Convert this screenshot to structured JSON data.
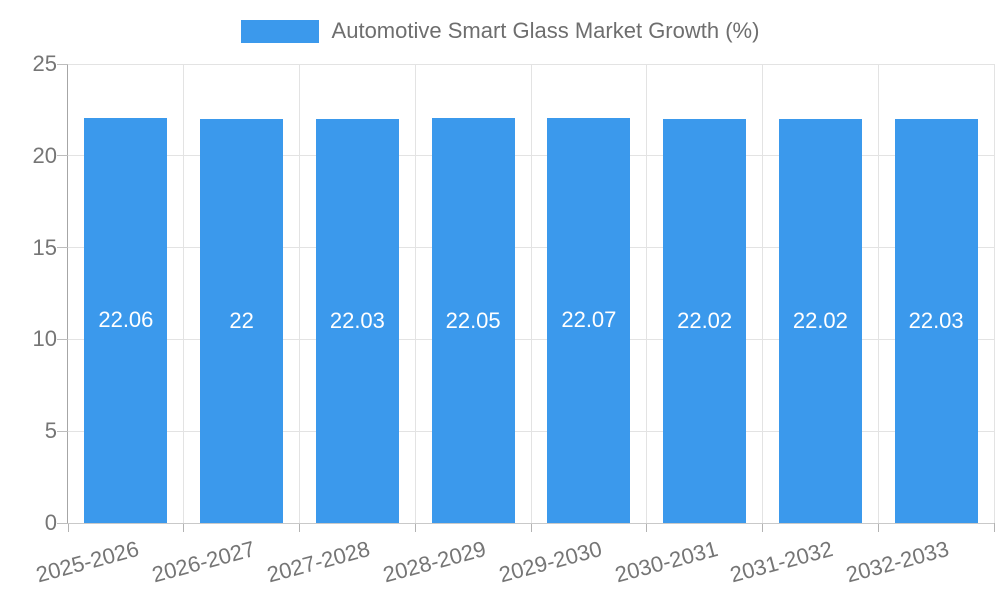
{
  "legend": {
    "label": "Automotive Smart Glass Market Growth (%)",
    "swatch_color": "#3b99ec"
  },
  "chart_data": {
    "type": "bar",
    "title": "Automotive Smart Glass Market Growth (%)",
    "categories": [
      "2025-2026",
      "2026-2027",
      "2027-2028",
      "2028-2029",
      "2029-2030",
      "2030-2031",
      "2031-2032",
      "2032-2033"
    ],
    "values": [
      22.06,
      22,
      22.03,
      22.05,
      22.07,
      22.02,
      22.02,
      22.03
    ],
    "value_labels": [
      "22.06",
      "22",
      "22.03",
      "22.05",
      "22.07",
      "22.02",
      "22.02",
      "22.03"
    ],
    "xlabel": "",
    "ylabel": "",
    "ylim": [
      0,
      25
    ],
    "yticks": [
      0,
      5,
      10,
      15,
      20,
      25
    ],
    "grid": true,
    "legend_position": "top",
    "bar_color": "#3b99ec",
    "value_label_color": "#ffffff",
    "tick_label_color": "#757575",
    "gridline_color": "#e3e3e3"
  }
}
